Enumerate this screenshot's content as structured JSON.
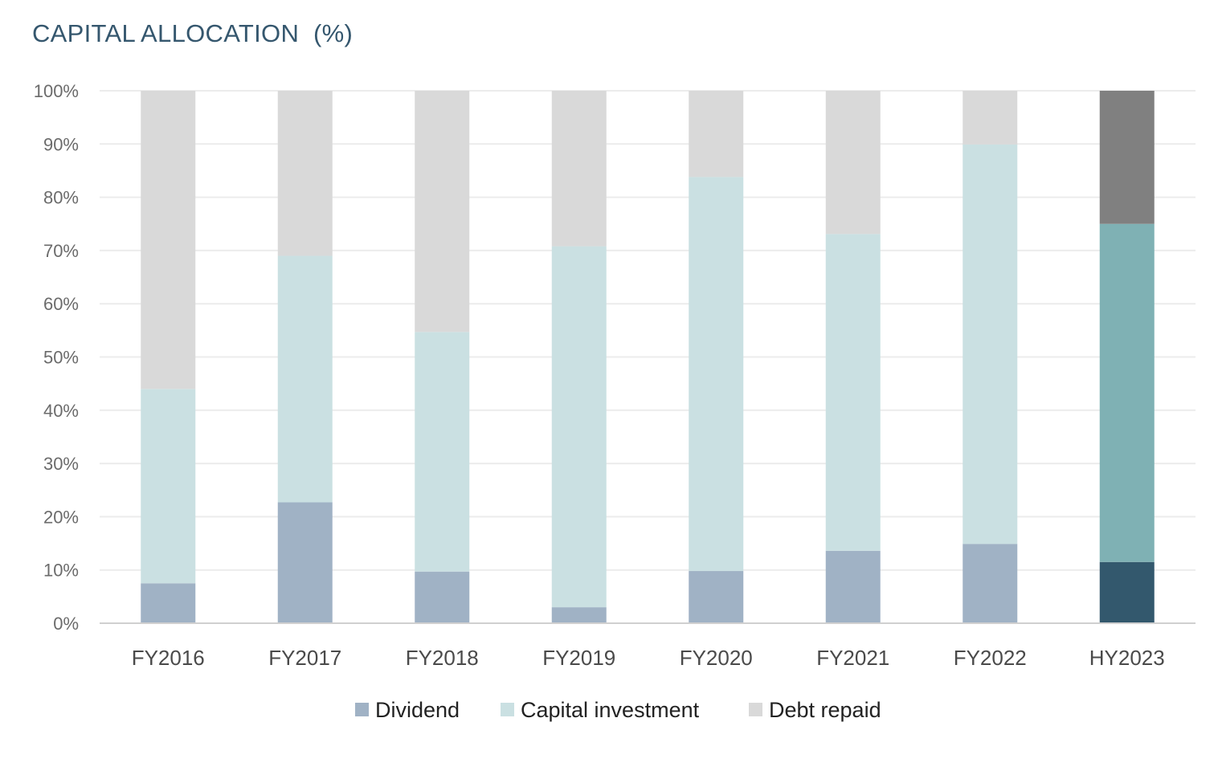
{
  "chart_data": {
    "type": "bar",
    "stacked": true,
    "title": "CAPITAL ALLOCATION  (%)",
    "xlabel": "",
    "ylabel": "",
    "ylim": [
      0,
      100
    ],
    "yticks": [
      "0%",
      "10%",
      "20%",
      "30%",
      "40%",
      "50%",
      "60%",
      "70%",
      "80%",
      "90%",
      "100%"
    ],
    "grid": true,
    "legend_position": "bottom",
    "categories": [
      "FY2016",
      "FY2017",
      "FY2018",
      "FY2019",
      "FY2020",
      "FY2021",
      "FY2022",
      "HY2023"
    ],
    "series": [
      {
        "name": "Dividend",
        "color": "#a0b2c5",
        "values": [
          7.5,
          22.7,
          9.7,
          3.0,
          9.8,
          13.6,
          14.9,
          11.5
        ]
      },
      {
        "name": "Capital investment",
        "color": "#cae0e2",
        "values": [
          36.5,
          46.3,
          45.0,
          67.8,
          74.0,
          59.5,
          75.0,
          63.5
        ]
      },
      {
        "name": "Debt repaid",
        "color": "#d9d9d9",
        "values": [
          56.0,
          31.0,
          45.3,
          29.2,
          16.2,
          26.9,
          10.1,
          25.0
        ]
      }
    ],
    "highlight": {
      "category": "HY2023",
      "colors": [
        "#33586d",
        "#7fb1b4",
        "#808080"
      ]
    }
  }
}
